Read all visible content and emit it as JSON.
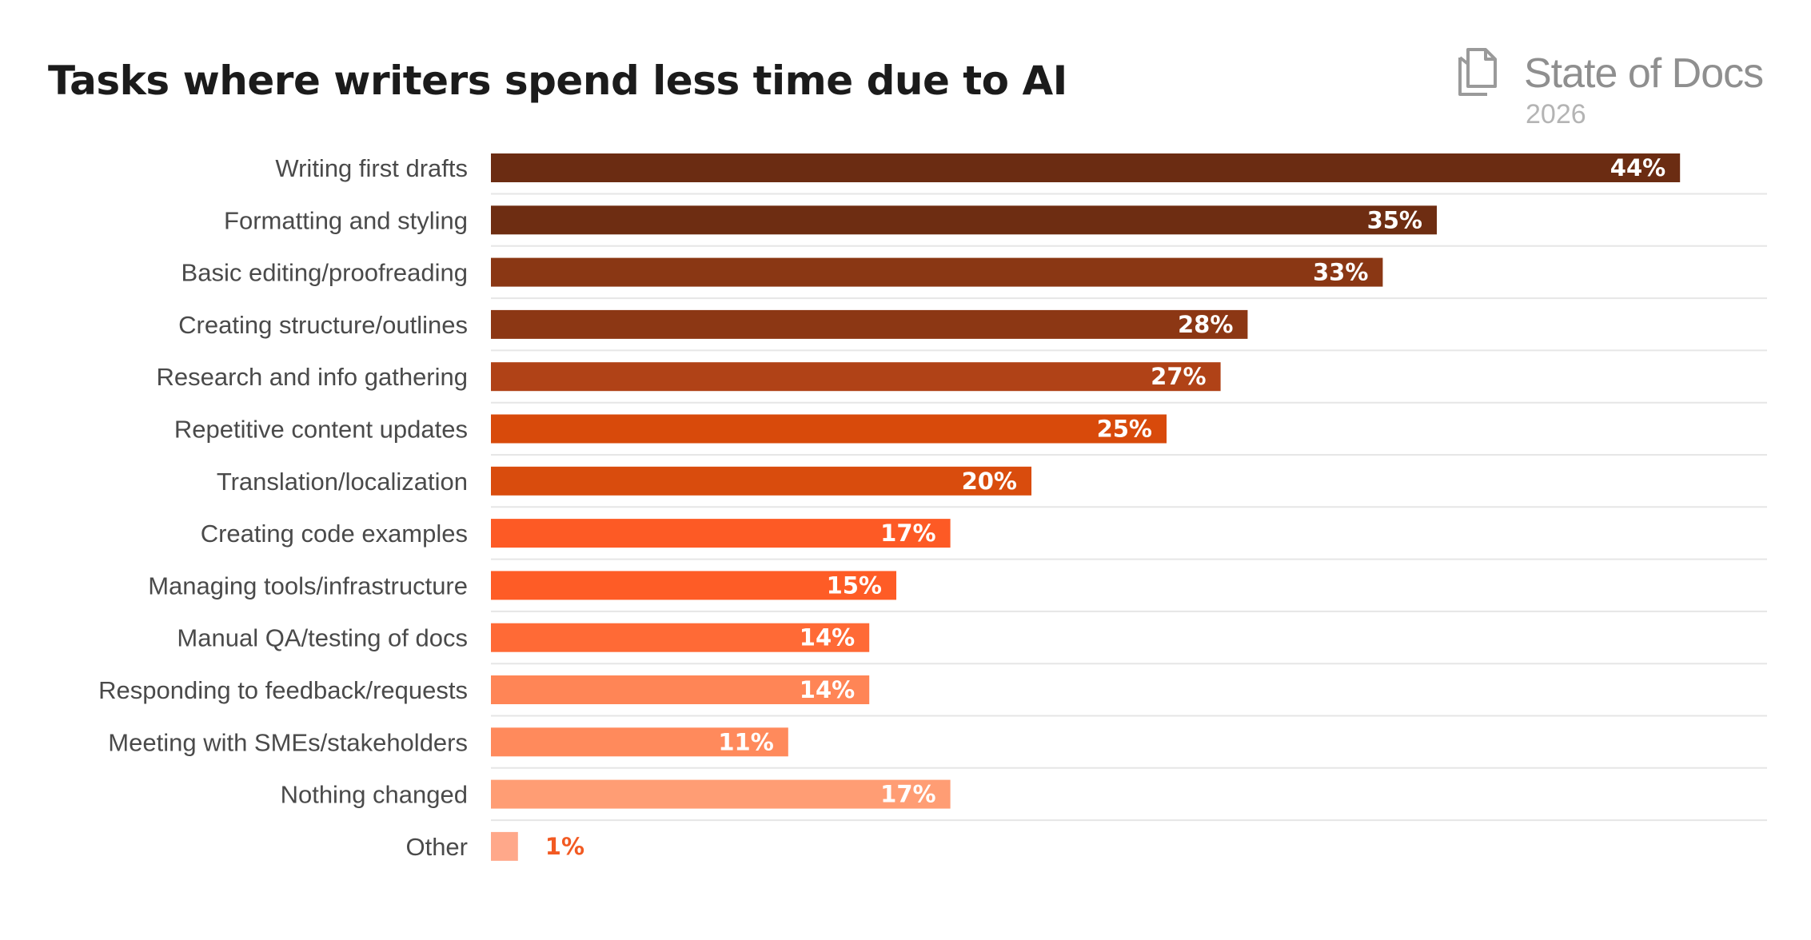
{
  "title": "Tasks where writers spend less time due to AI",
  "brand": {
    "name": "State of Docs",
    "year": "2026",
    "icon": "documents-icon"
  },
  "colors": {
    "bar_ramp": [
      "#6b2c12",
      "#6e2d12",
      "#8a3714",
      "#8c3714",
      "#b04217",
      "#d84a0b",
      "#d94c0d",
      "#fd5a25",
      "#fe5c26",
      "#ff6a36",
      "#ff8556",
      "#ff8a5c",
      "#ff9d74",
      "#ffa88a"
    ],
    "value_text_inside": "#ffffff",
    "value_text_outside": "#f25a22",
    "gridline": "#e6e6e6"
  },
  "chart_data": {
    "type": "bar",
    "orientation": "horizontal",
    "categories": [
      "Writing first drafts",
      "Formatting and styling",
      "Basic editing/proofreading",
      "Creating structure/outlines",
      "Research and info gathering",
      "Repetitive content updates",
      "Translation/localization",
      "Creating code examples",
      "Managing tools/infrastructure",
      "Manual QA/testing of docs",
      "Responding to feedback/requests",
      "Meeting with SMEs/stakeholders",
      "Nothing changed",
      "Other"
    ],
    "values": [
      44,
      35,
      33,
      28,
      27,
      25,
      20,
      17,
      15,
      14,
      14,
      11,
      17,
      1
    ],
    "value_labels": [
      "44%",
      "35%",
      "33%",
      "28%",
      "27%",
      "25%",
      "20%",
      "17%",
      "15%",
      "14%",
      "14%",
      "11%",
      "17%",
      "1%"
    ],
    "unit": "%",
    "xlim": [
      0,
      48
    ],
    "grid": "horizontal separators between rows",
    "legend": "none"
  }
}
